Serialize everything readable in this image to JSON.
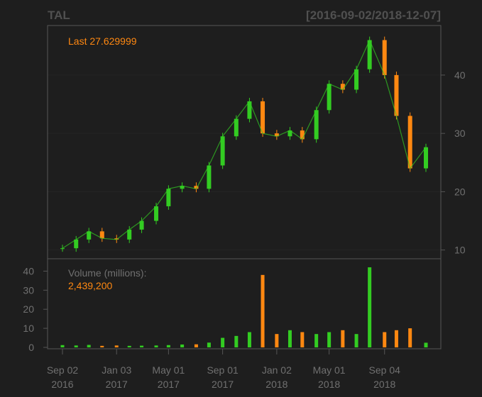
{
  "header": {
    "symbol": "TAL",
    "date_range": "[2016-09-02/2018-12-07]"
  },
  "price_panel": {
    "last_label": "Last 27.629999",
    "y_ticks": [
      "10",
      "20",
      "30",
      "40"
    ]
  },
  "volume_panel": {
    "label": "Volume (millions):",
    "last_volume": "2,439,200",
    "y_ticks": [
      "0",
      "10",
      "20",
      "30",
      "40"
    ]
  },
  "x_ticks": [
    {
      "line1": "Sep 02",
      "line2": "2016"
    },
    {
      "line1": "Jan 03",
      "line2": "2017"
    },
    {
      "line1": "May 01",
      "line2": "2017"
    },
    {
      "line1": "Sep 01",
      "line2": "2017"
    },
    {
      "line1": "Jan 02",
      "line2": "2018"
    },
    {
      "line1": "May 01",
      "line2": "2018"
    },
    {
      "line1": "Sep 04",
      "line2": "2018"
    }
  ],
  "colors": {
    "background": "#1e1e1e",
    "up": "#33cc22",
    "down": "#ff8811",
    "axis_text": "#707070",
    "frame": "#555555",
    "grid": "#262626"
  },
  "chart_data": [
    {
      "type": "candlestick",
      "series_name": "TAL",
      "x": [
        "2016-09-02",
        "2016-10-03",
        "2016-11-01",
        "2016-12-01",
        "2017-01-03",
        "2017-02-01",
        "2017-03-01",
        "2017-04-03",
        "2017-05-01",
        "2017-06-01",
        "2017-07-03",
        "2017-08-01",
        "2017-09-01",
        "2017-10-02",
        "2017-11-01",
        "2017-12-01",
        "2018-01-02",
        "2018-02-01",
        "2018-03-01",
        "2018-04-02",
        "2018-05-01",
        "2018-06-01",
        "2018-07-02",
        "2018-08-01",
        "2018-09-04",
        "2018-10-01",
        "2018-11-01",
        "2018-12-07"
      ],
      "close": [
        10.3,
        11.8,
        13.2,
        12.0,
        11.8,
        13.5,
        15.0,
        17.5,
        20.5,
        21.0,
        20.5,
        24.5,
        29.5,
        32.5,
        35.5,
        30.0,
        29.5,
        30.5,
        29.0,
        34.0,
        38.5,
        37.5,
        41.0,
        46.0,
        40.0,
        33.0,
        24.0,
        27.63
      ],
      "ylim": [
        8.5,
        48.5
      ],
      "y_axis_side": "right"
    },
    {
      "type": "bar",
      "series_name": "Volume (millions)",
      "x": [
        "2016-09-02",
        "2016-10-03",
        "2016-11-01",
        "2016-12-01",
        "2017-01-03",
        "2017-02-01",
        "2017-03-01",
        "2017-04-03",
        "2017-05-01",
        "2017-06-01",
        "2017-07-03",
        "2017-08-01",
        "2017-09-01",
        "2017-10-02",
        "2017-11-01",
        "2017-12-01",
        "2018-01-02",
        "2018-02-01",
        "2018-03-01",
        "2018-04-02",
        "2018-05-01",
        "2018-06-01",
        "2018-07-02",
        "2018-08-01",
        "2018-09-04",
        "2018-10-01",
        "2018-11-01",
        "2018-12-07"
      ],
      "values": [
        1.2,
        1.0,
        1.3,
        0.8,
        1.0,
        0.8,
        0.9,
        1.0,
        1.2,
        1.5,
        1.6,
        2.5,
        5.0,
        6.0,
        8.0,
        38.0,
        7.0,
        9.0,
        8.0,
        7.0,
        8.0,
        9.0,
        7.0,
        42.0,
        8.0,
        9.0,
        10.0,
        2.4392
      ],
      "ylim": [
        0,
        45
      ],
      "y_axis_side": "left"
    }
  ]
}
